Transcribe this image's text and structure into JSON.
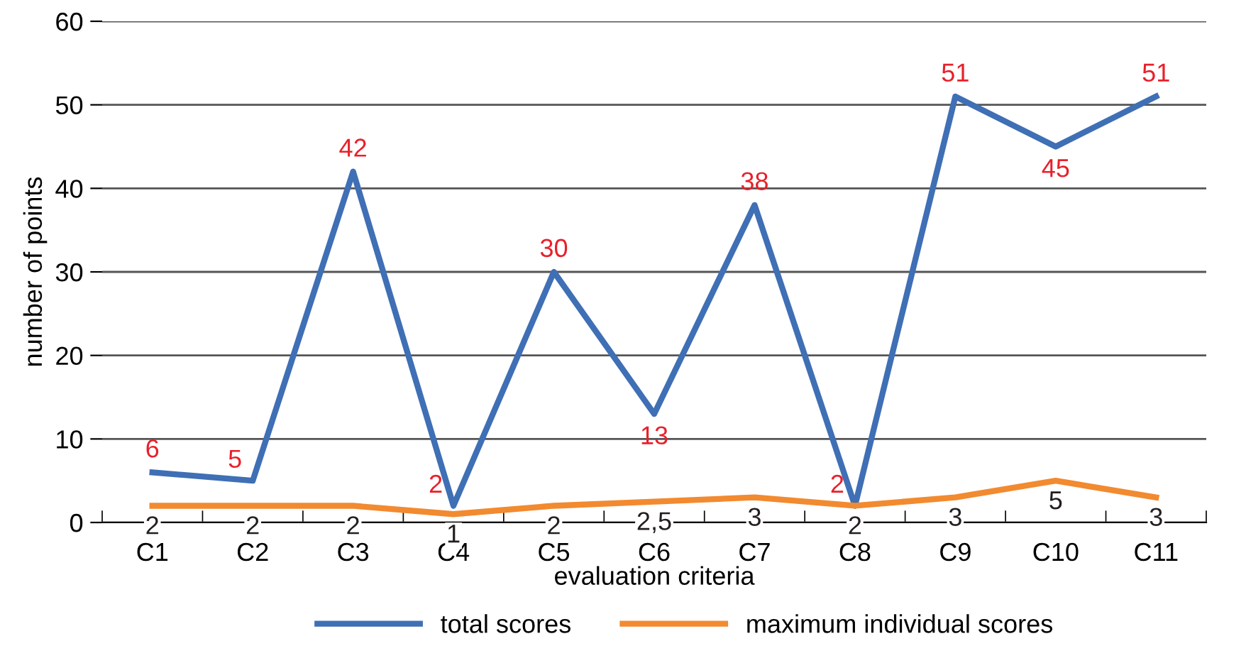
{
  "chart_data": {
    "type": "line",
    "xlabel": "evaluation criteria",
    "ylabel": "number of points",
    "categories": [
      "C1",
      "C2",
      "C3",
      "C4",
      "C5",
      "C6",
      "C7",
      "C8",
      "C9",
      "C10",
      "C11"
    ],
    "series": [
      {
        "name": "total scores",
        "color": "#3f6fb5",
        "values": [
          6,
          5,
          42,
          2,
          30,
          13,
          38,
          2,
          51,
          45,
          51
        ],
        "value_labels": [
          "6",
          "5",
          "42",
          "2",
          "30",
          "13",
          "38",
          "2",
          "51",
          "45",
          "51"
        ]
      },
      {
        "name": "maximum individual scores",
        "color": "#f28a30",
        "values": [
          2,
          2,
          2,
          1,
          2,
          2.5,
          3,
          2,
          3,
          5,
          3
        ],
        "value_labels": [
          "2",
          "2",
          "2",
          "1",
          "2",
          "2,5",
          "3",
          "2",
          "3",
          "5",
          "3"
        ]
      }
    ],
    "ylim": [
      0,
      60
    ],
    "yticks": [
      0,
      10,
      20,
      30,
      40,
      50,
      60
    ],
    "grid": "y",
    "legend": "bottom",
    "marker": "none",
    "line_style": "solid"
  }
}
